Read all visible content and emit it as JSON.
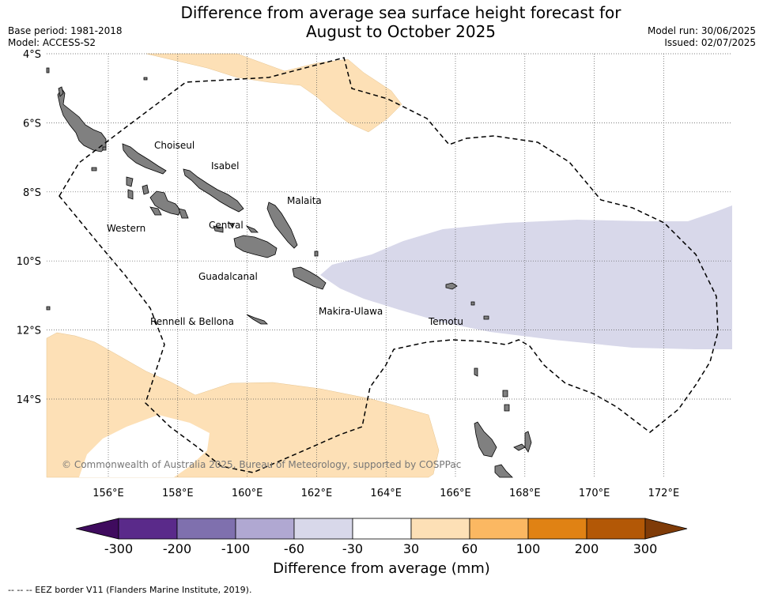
{
  "title": {
    "line1": "Difference from average sea surface height forecast for",
    "line2": "August to October 2025"
  },
  "meta": {
    "base_period": "Base period: 1981-2018",
    "model": "Model: ACCESS-S2",
    "model_run": "Model run: 30/06/2025",
    "issued": "Issued: 02/07/2025"
  },
  "map": {
    "lon_range": [
      154.0,
      174.0
    ],
    "lat_range": [
      -16.0,
      -4.0
    ],
    "lon_ticks": [
      "156°E",
      "158°E",
      "160°E",
      "162°E",
      "164°E",
      "166°E",
      "168°E",
      "170°E",
      "172°E"
    ],
    "lat_ticks": [
      "4°S",
      "6°S",
      "8°S",
      "10°S",
      "12°S",
      "14°S"
    ],
    "gridlines": "dotted",
    "province_labels": [
      "Choiseul",
      "Isabel",
      "Malaita",
      "Western",
      "Central",
      "Guadalcanal",
      "Makira-Ulawa",
      "Rennell & Bellona",
      "Temotu"
    ],
    "copyright": "© Commonwealth of Australia 2025, Bureau of Meteorology, supported by COSPPac",
    "colors": {
      "land": "#808080",
      "positive_30_60": "#fde0b6",
      "negative_30_60": "#d8d8ea",
      "eez_border": "#000000"
    }
  },
  "colorbar": {
    "ticks": [
      "-300",
      "-200",
      "-100",
      "-60",
      "-30",
      "30",
      "60",
      "100",
      "200",
      "300"
    ],
    "colors": [
      "#3f0b5e",
      "#5a2a8a",
      "#7f70ae",
      "#b0a8d2",
      "#d8d8ea",
      "#ffffff",
      "#fde0b6",
      "#fbb862",
      "#e08214",
      "#b35806",
      "#7f3b08"
    ],
    "label": "Difference from average (mm)"
  },
  "footnote": "-- -- -- EEZ border V11 (Flanders Marine Institute, 2019)."
}
